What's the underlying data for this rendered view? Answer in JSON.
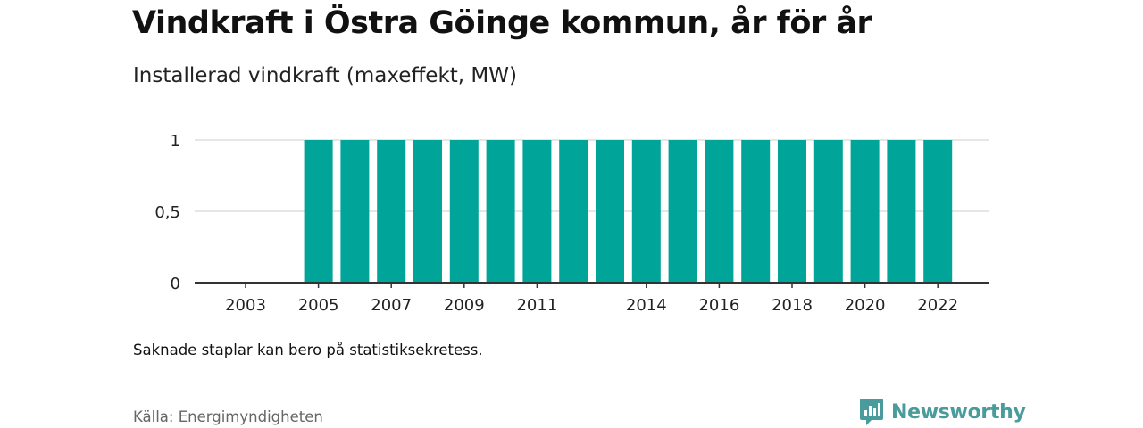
{
  "title": "Vindkraft i Östra Göinge kommun, år för år",
  "subtitle": "Installerad vindkraft (maxeffekt, MW)",
  "footnote": "Saknade staplar kan bero på statistiksekretess.",
  "source": "Källa: Energimyndigheten",
  "brand": {
    "name": "Newsworthy",
    "icon": "newsworthy-logo-icon",
    "color": "#4a9b9b"
  },
  "colors": {
    "bar": "#00a499",
    "grid": "#dddddd",
    "axis": "#333333"
  },
  "chart_data": {
    "type": "bar",
    "title": "Vindkraft i Östra Göinge kommun, år för år",
    "subtitle": "Installerad vindkraft (maxeffekt, MW)",
    "xlabel": "",
    "ylabel": "",
    "categories": [
      "2003",
      "2004",
      "2005",
      "2006",
      "2007",
      "2008",
      "2009",
      "2010",
      "2011",
      "2012",
      "2013",
      "2014",
      "2015",
      "2016",
      "2017",
      "2018",
      "2019",
      "2020",
      "2021",
      "2022"
    ],
    "values": [
      null,
      null,
      1,
      1,
      1,
      1,
      1,
      1,
      1,
      1,
      1,
      1,
      1,
      1,
      1,
      1,
      1,
      1,
      1,
      1
    ],
    "x_tick_labels": [
      "2003",
      "2005",
      "2007",
      "2009",
      "2011",
      "2014",
      "2016",
      "2018",
      "2020",
      "2022"
    ],
    "y_ticks": [
      0,
      0.5,
      1
    ],
    "y_tick_labels": [
      "0",
      "0,5",
      "1"
    ],
    "ylim": [
      0,
      1
    ],
    "grid": true,
    "legend": "none"
  }
}
